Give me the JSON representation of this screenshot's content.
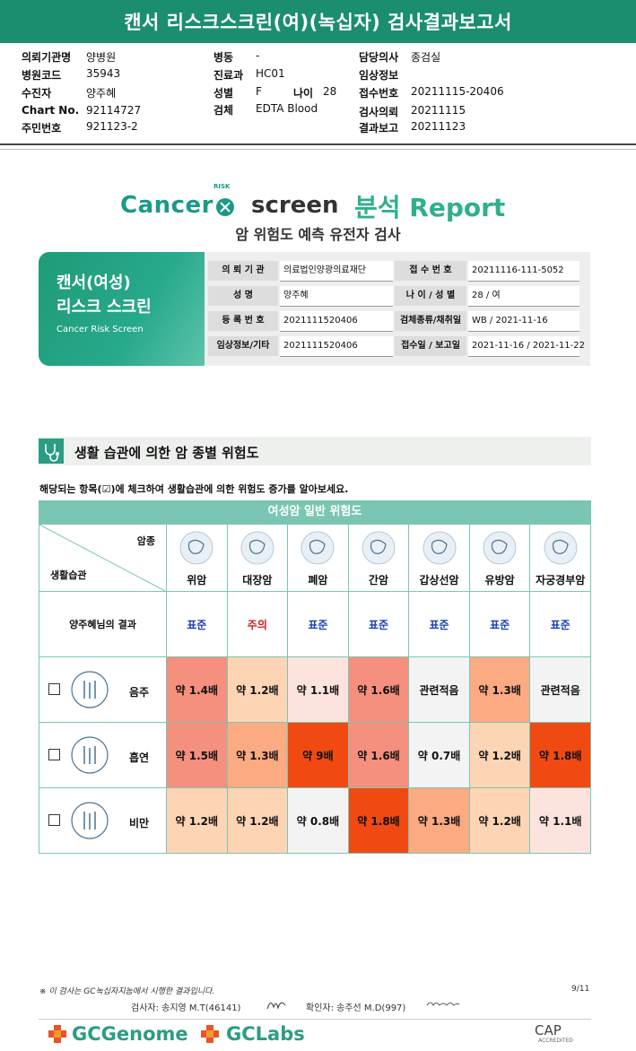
{
  "banner_title": "캔서 리스크스크린(여)(녹십자) 검사결과보고서",
  "header": {
    "col1": [
      {
        "label": "의뢰기관명",
        "value": "양병원"
      },
      {
        "label": "병원코드",
        "value": "35943"
      },
      {
        "label": "수진자",
        "value": "양주혜"
      },
      {
        "label": "Chart No.",
        "value": "92114727"
      },
      {
        "label": "주민번호",
        "value": "921123-2"
      }
    ],
    "col2": [
      {
        "label": "병동",
        "value": "-"
      },
      {
        "label": "진료과",
        "value": "HC01"
      },
      {
        "label": "성별",
        "value": "F"
      },
      {
        "label": "검체",
        "value": "EDTA Blood"
      }
    ],
    "age_label": "나이",
    "age_value": "28",
    "col3": [
      {
        "label": "담당의사",
        "value": "종검실"
      },
      {
        "label": "임상정보",
        "value": ""
      },
      {
        "label": "접수번호",
        "value": "20211115-20406"
      },
      {
        "label": "검사의뢰",
        "value": "20211115"
      },
      {
        "label": "결과보고",
        "value": "20211123"
      }
    ]
  },
  "logo": {
    "cancer": "Cancer",
    "risk": "RISK",
    "screen": "screen",
    "report": "분석 Report"
  },
  "subtitle": "암 위험도 예측 유전자 검사",
  "card": {
    "line1": "캔서(여성)",
    "line2": "리스크 스크린",
    "line3": "Cancer Risk Screen"
  },
  "info": {
    "rows": [
      {
        "l1": "의 뢰 기 관",
        "v1": "의료법인양광의료재단",
        "l2": "접 수 번 호",
        "v2": "20211116-111-5052"
      },
      {
        "l1": "성        명",
        "v1": "양주혜",
        "l2": "나 이 / 성 별",
        "v2": "28 / 여"
      },
      {
        "l1": "등 록 번 호",
        "v1": "2021111520406",
        "l2": "검체종류/채취일",
        "v2": "WB / 2021-11-16"
      },
      {
        "l1": "임상정보/기타",
        "v1": "2021111520406",
        "l2": "접수일 / 보고일",
        "v2": "2021-11-16 / 2021-11-22"
      }
    ]
  },
  "section_title": "생활 습관에 의한 암 종별 위험도",
  "instruction": "해당되는 항목(☑)에 체크하여 생활습관에 의한 위험도 증가를 알아보세요.",
  "risk_table": {
    "head": "여성암 일반 위험도",
    "corner_top": "암종",
    "corner_bottom": "생활습관",
    "cancers": [
      "위암",
      "대장암",
      "폐암",
      "간암",
      "갑상선암",
      "유방암",
      "자궁경부암"
    ],
    "result_label": "양주혜님의 결과",
    "results": [
      {
        "text": "표준",
        "warn": false
      },
      {
        "text": "주의",
        "warn": true
      },
      {
        "text": "표준",
        "warn": false
      },
      {
        "text": "표준",
        "warn": false
      },
      {
        "text": "표준",
        "warn": false
      },
      {
        "text": "표준",
        "warn": false
      },
      {
        "text": "표준",
        "warn": false
      }
    ],
    "habits": [
      {
        "name": "음주",
        "icon": "alcohol-icon",
        "cells": [
          {
            "t": "약 1.4배",
            "c": "#f58f7e"
          },
          {
            "t": "약 1.2배",
            "c": "#fdd4b4"
          },
          {
            "t": "약 1.1배",
            "c": "#fde3de"
          },
          {
            "t": "약 1.6배",
            "c": "#f58f7e"
          },
          {
            "t": "관련적음",
            "c": "#f3f3f3"
          },
          {
            "t": "약 1.3배",
            "c": "#fbaa82"
          },
          {
            "t": "관련적음",
            "c": "#f3f3f3"
          }
        ]
      },
      {
        "name": "흡연",
        "icon": "smoking-icon",
        "cells": [
          {
            "t": "약 1.5배",
            "c": "#f58f7e"
          },
          {
            "t": "약 1.3배",
            "c": "#fbaa82"
          },
          {
            "t": "약 9배",
            "c": "#f04a12"
          },
          {
            "t": "약 1.6배",
            "c": "#f58f7e"
          },
          {
            "t": "약 0.7배",
            "c": "#f3f3f3"
          },
          {
            "t": "약 1.2배",
            "c": "#fdd4b4"
          },
          {
            "t": "약 1.8배",
            "c": "#f04a12"
          }
        ]
      },
      {
        "name": "비만",
        "icon": "obesity-icon",
        "cells": [
          {
            "t": "약 1.2배",
            "c": "#fdd4b4"
          },
          {
            "t": "약 1.2배",
            "c": "#fdd4b4"
          },
          {
            "t": "약 0.8배",
            "c": "#f3f3f3"
          },
          {
            "t": "약 1.8배",
            "c": "#f04a12"
          },
          {
            "t": "약 1.3배",
            "c": "#fbaa82"
          },
          {
            "t": "약 1.2배",
            "c": "#fdd4b4"
          },
          {
            "t": "약 1.1배",
            "c": "#fde3de"
          }
        ]
      }
    ]
  },
  "footer": {
    "note": "※ 이 검사는 GC녹십자지놈에서 시행한 결과입니다.",
    "page": "9/11",
    "examiner": "검사자: 송지영 M.T(46141)",
    "confirmer": "확인자: 송주선 M.D(997)",
    "brand1": "GCGenome",
    "brand2": "GCLabs",
    "cap": "CAP",
    "cap_sub": "ACCREDITED"
  }
}
